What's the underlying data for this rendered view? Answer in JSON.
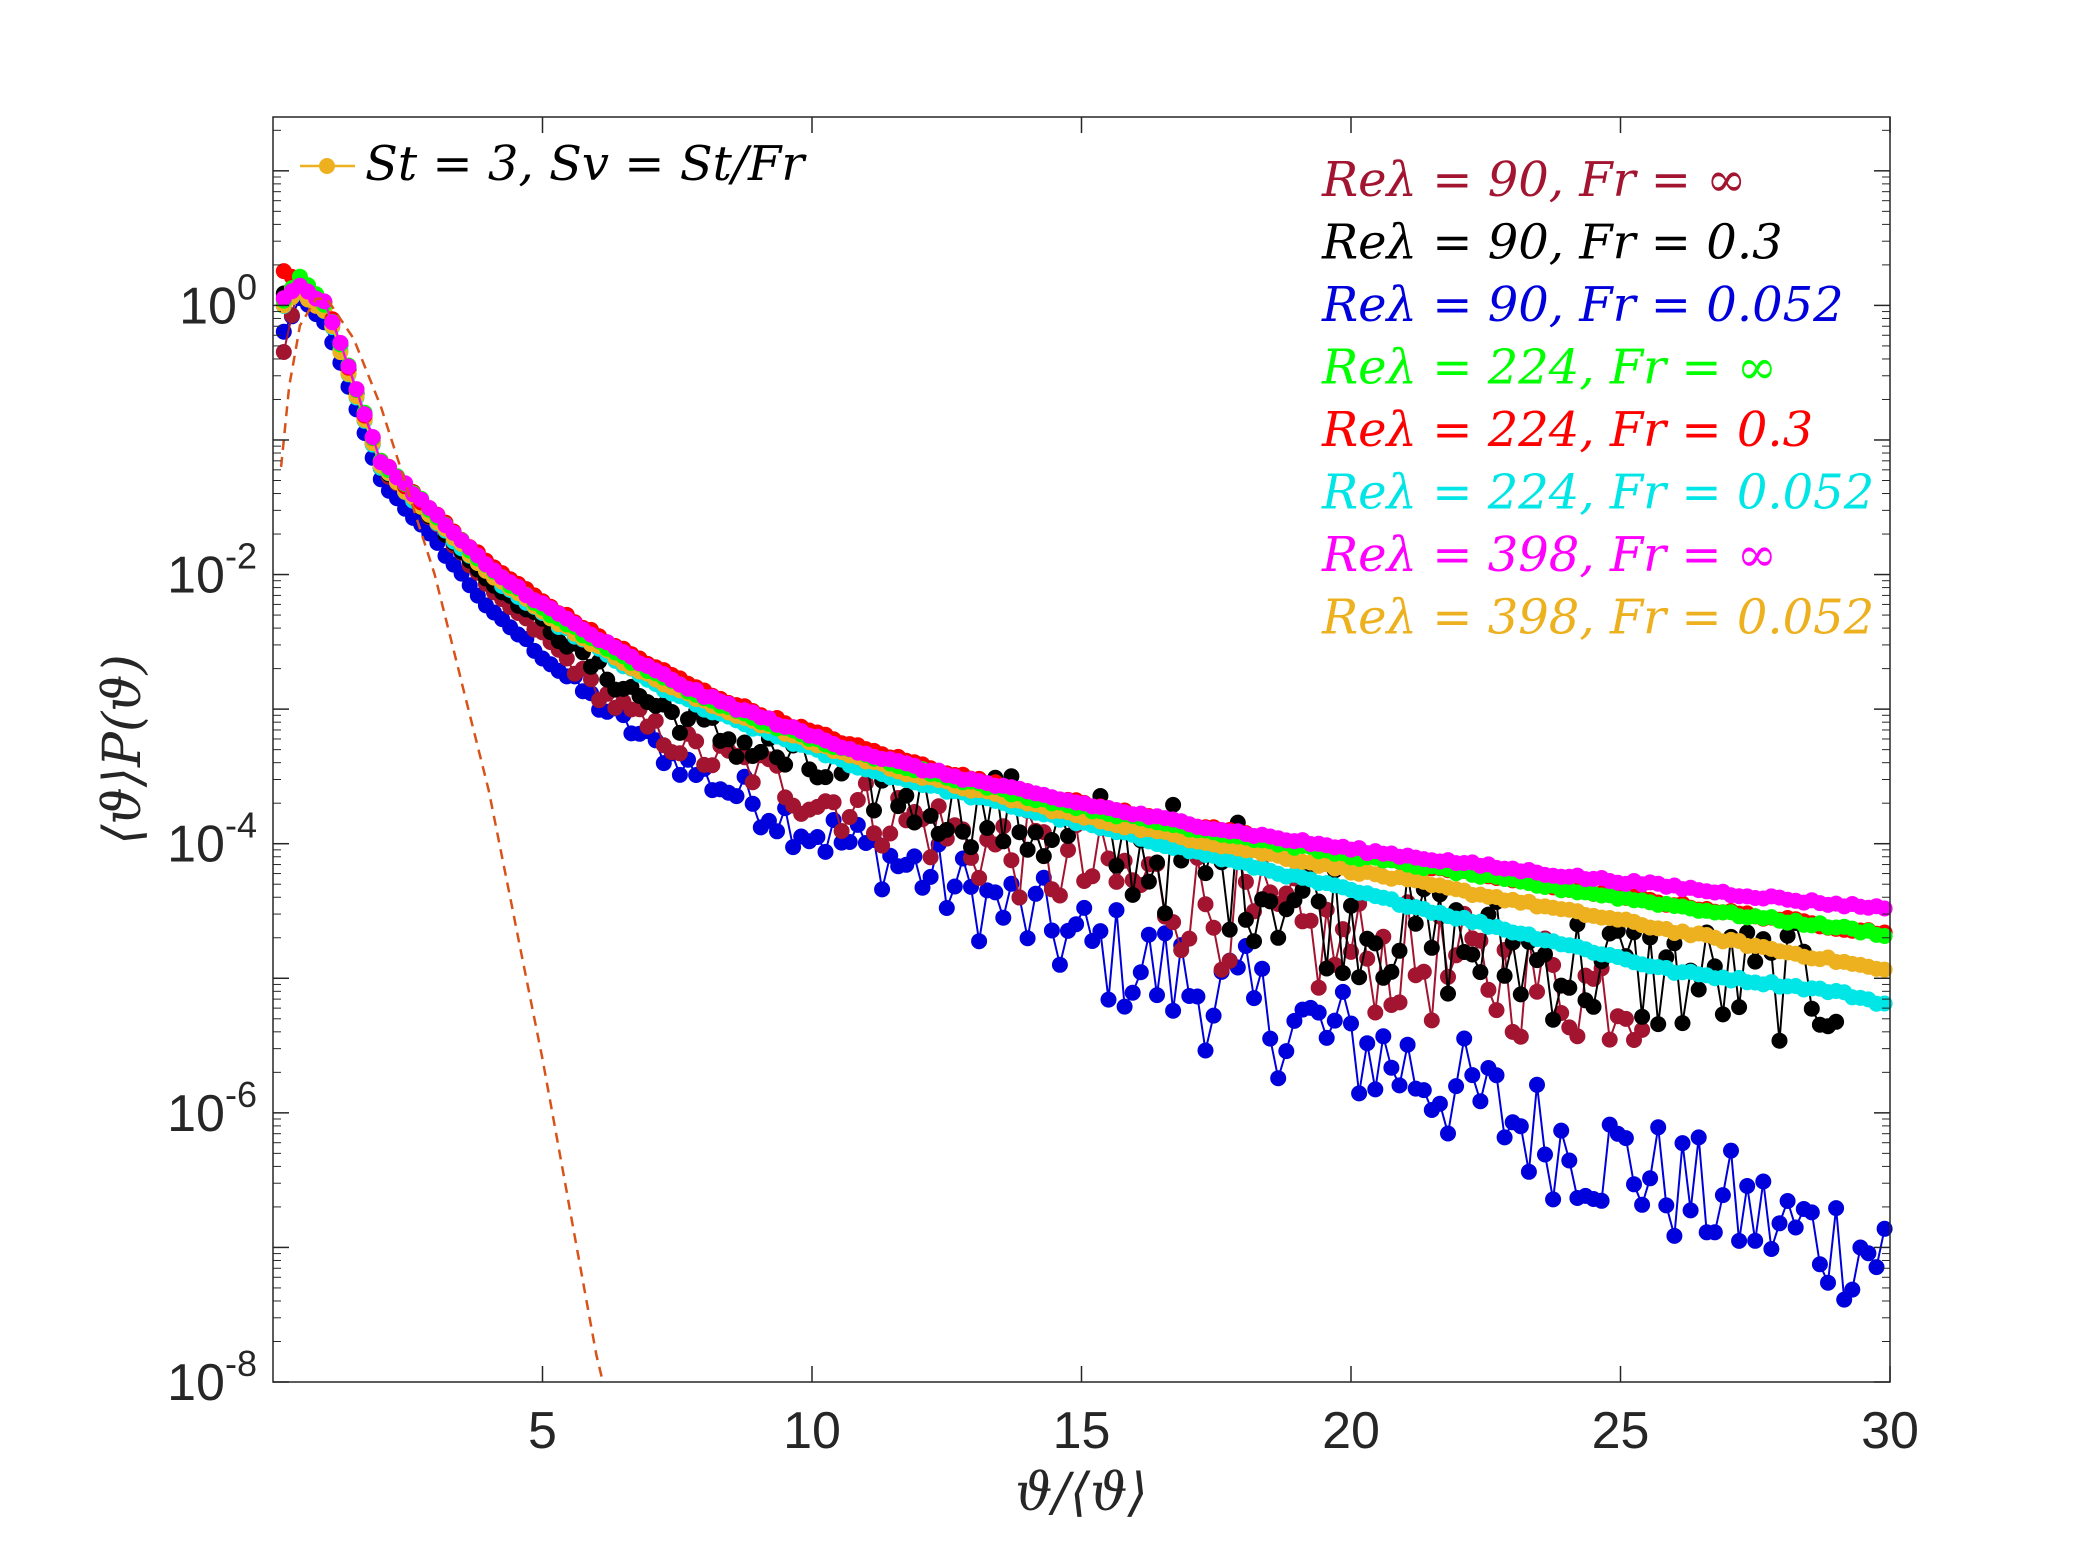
{
  "chart_data": {
    "type": "scatter",
    "title": "",
    "xlabel": "ϑ/⟨ϑ⟩",
    "ylabel": "⟨ϑ⟩P(ϑ)",
    "x_range": [
      0,
      30
    ],
    "y_range_log10": [
      -8,
      1.4
    ],
    "y_scale": "log",
    "xticks": [
      5,
      10,
      15,
      20,
      25,
      30
    ],
    "xtick_labels": [
      "5",
      "10",
      "15",
      "20",
      "25",
      "30"
    ],
    "yticks_log10": [
      0,
      -2,
      -4,
      -6,
      -8
    ],
    "ytick_base": "10",
    "ytick_exponents": [
      "0",
      "-2",
      "-4",
      "-6",
      "-8"
    ],
    "legend_title": "St = 3, Sv = St/Fr",
    "legend_title_color": "#EDB120",
    "legend_placement": "top-right",
    "grid": false,
    "series": [
      {
        "name": "Reλ = 90, Fr = ∞",
        "color": "#A2142F",
        "noisy_tail": true,
        "points": [
          [
            0.2,
            -0.35
          ],
          [
            0.5,
            0.2
          ],
          [
            1,
            0.0
          ],
          [
            2,
            -1.2
          ],
          [
            3,
            -1.6
          ],
          [
            4,
            -2.1
          ],
          [
            5,
            -2.45
          ],
          [
            6,
            -2.85
          ],
          [
            7,
            -3.15
          ],
          [
            8,
            -3.35
          ],
          [
            9,
            -3.45
          ],
          [
            10,
            -3.65
          ],
          [
            11,
            -3.75
          ],
          [
            12,
            -3.85
          ],
          [
            13,
            -4.0
          ],
          [
            14,
            -4.1
          ],
          [
            15,
            -4.2
          ],
          [
            16,
            -4.3
          ],
          [
            17,
            -4.4
          ],
          [
            18,
            -4.55
          ],
          [
            19,
            -4.7
          ],
          [
            20,
            -4.8
          ],
          [
            22,
            -4.95
          ],
          [
            24,
            -5.05
          ],
          [
            25.5,
            -5.1
          ]
        ]
      },
      {
        "name": "Reλ = 90, Fr = 0.3",
        "color": "#000000",
        "noisy_tail": true,
        "points": [
          [
            0.2,
            0.1
          ],
          [
            0.5,
            0.15
          ],
          [
            1,
            0.0
          ],
          [
            2,
            -1.2
          ],
          [
            3,
            -1.6
          ],
          [
            4,
            -2.05
          ],
          [
            5,
            -2.35
          ],
          [
            6,
            -2.7
          ],
          [
            7,
            -2.95
          ],
          [
            8,
            -3.15
          ],
          [
            9,
            -3.3
          ],
          [
            10,
            -3.45
          ],
          [
            11,
            -3.55
          ],
          [
            12,
            -3.65
          ],
          [
            13,
            -3.72
          ],
          [
            14,
            -3.85
          ],
          [
            15,
            -3.95
          ],
          [
            16,
            -4.05
          ],
          [
            17,
            -4.15
          ],
          [
            18,
            -4.25
          ],
          [
            19,
            -4.4
          ],
          [
            20,
            -4.55
          ],
          [
            22,
            -4.75
          ],
          [
            24,
            -4.9
          ],
          [
            26,
            -5.0
          ],
          [
            29,
            -5.05
          ]
        ]
      },
      {
        "name": "Reλ = 90, Fr = 0.052",
        "color": "#0000DD",
        "noisy_tail": true,
        "points": [
          [
            0.2,
            -0.2
          ],
          [
            0.5,
            0.05
          ],
          [
            1,
            -0.15
          ],
          [
            2,
            -1.3
          ],
          [
            3,
            -1.75
          ],
          [
            4,
            -2.25
          ],
          [
            5,
            -2.6
          ],
          [
            6,
            -2.95
          ],
          [
            7,
            -3.25
          ],
          [
            8,
            -3.5
          ],
          [
            9,
            -3.7
          ],
          [
            10,
            -3.9
          ],
          [
            11,
            -4.05
          ],
          [
            12,
            -4.2
          ],
          [
            13,
            -4.4
          ],
          [
            14,
            -4.55
          ],
          [
            15,
            -4.75
          ],
          [
            16,
            -4.9
          ],
          [
            17,
            -5.05
          ],
          [
            18,
            -5.2
          ],
          [
            19,
            -5.35
          ],
          [
            20,
            -5.5
          ],
          [
            21,
            -5.65
          ],
          [
            22,
            -5.85
          ],
          [
            23,
            -6.05
          ],
          [
            24,
            -6.25
          ],
          [
            25,
            -6.35
          ],
          [
            26,
            -6.55
          ],
          [
            27,
            -6.7
          ],
          [
            28,
            -6.85
          ],
          [
            29,
            -6.95
          ],
          [
            30,
            -7.05
          ]
        ]
      },
      {
        "name": "Reλ = 224, Fr = ∞",
        "color": "#00FF00",
        "noisy_tail": false,
        "points": [
          [
            0.2,
            0.05
          ],
          [
            0.5,
            0.2
          ],
          [
            1,
            0.0
          ],
          [
            2,
            -1.15
          ],
          [
            3,
            -1.55
          ],
          [
            4,
            -1.95
          ],
          [
            5,
            -2.25
          ],
          [
            6,
            -2.5
          ],
          [
            7,
            -2.72
          ],
          [
            8,
            -2.92
          ],
          [
            9,
            -3.08
          ],
          [
            10,
            -3.22
          ],
          [
            11,
            -3.35
          ],
          [
            12,
            -3.45
          ],
          [
            13,
            -3.55
          ],
          [
            14,
            -3.65
          ],
          [
            15,
            -3.73
          ],
          [
            16,
            -3.81
          ],
          [
            17,
            -3.88
          ],
          [
            18,
            -3.95
          ],
          [
            19,
            -4.02
          ],
          [
            20,
            -4.09
          ],
          [
            21,
            -4.15
          ],
          [
            22,
            -4.21
          ],
          [
            23,
            -4.28
          ],
          [
            24,
            -4.34
          ],
          [
            25,
            -4.4
          ],
          [
            26,
            -4.46
          ],
          [
            27,
            -4.52
          ],
          [
            28,
            -4.57
          ],
          [
            29,
            -4.62
          ],
          [
            30,
            -4.68
          ]
        ]
      },
      {
        "name": "Reλ = 224, Fr = 0.3",
        "color": "#FF0000",
        "noisy_tail": false,
        "points": [
          [
            0.2,
            0.25
          ],
          [
            0.5,
            0.2
          ],
          [
            1,
            0.0
          ],
          [
            2,
            -1.15
          ],
          [
            3,
            -1.55
          ],
          [
            4,
            -1.92
          ],
          [
            5,
            -2.2
          ],
          [
            6,
            -2.45
          ],
          [
            7,
            -2.67
          ],
          [
            8,
            -2.87
          ],
          [
            9,
            -3.03
          ],
          [
            10,
            -3.17
          ],
          [
            11,
            -3.3
          ],
          [
            12,
            -3.41
          ],
          [
            13,
            -3.52
          ],
          [
            14,
            -3.61
          ],
          [
            15,
            -3.7
          ],
          [
            16,
            -3.78
          ],
          [
            17,
            -3.86
          ],
          [
            18,
            -3.93
          ],
          [
            19,
            -4.0
          ],
          [
            20,
            -4.07
          ],
          [
            21,
            -4.14
          ],
          [
            22,
            -4.2
          ],
          [
            23,
            -4.27
          ],
          [
            24,
            -4.33
          ],
          [
            25,
            -4.39
          ],
          [
            26,
            -4.45
          ],
          [
            27,
            -4.51
          ],
          [
            28,
            -4.56
          ],
          [
            29,
            -4.62
          ],
          [
            30,
            -4.67
          ]
        ]
      },
      {
        "name": "Reλ = 224, Fr = 0.052",
        "color": "#00E5E5",
        "noisy_tail": false,
        "points": [
          [
            0.2,
            0.0
          ],
          [
            0.5,
            0.1
          ],
          [
            1,
            -0.05
          ],
          [
            2,
            -1.2
          ],
          [
            3,
            -1.6
          ],
          [
            4,
            -2.0
          ],
          [
            5,
            -2.3
          ],
          [
            6,
            -2.55
          ],
          [
            7,
            -2.8
          ],
          [
            8,
            -3.0
          ],
          [
            9,
            -3.15
          ],
          [
            10,
            -3.3
          ],
          [
            11,
            -3.45
          ],
          [
            12,
            -3.55
          ],
          [
            13,
            -3.65
          ],
          [
            14,
            -3.75
          ],
          [
            15,
            -3.85
          ],
          [
            16,
            -3.95
          ],
          [
            17,
            -4.05
          ],
          [
            18,
            -4.15
          ],
          [
            19,
            -4.25
          ],
          [
            20,
            -4.35
          ],
          [
            21,
            -4.45
          ],
          [
            22,
            -4.55
          ],
          [
            23,
            -4.65
          ],
          [
            24,
            -4.75
          ],
          [
            25,
            -4.85
          ],
          [
            26,
            -4.95
          ],
          [
            27,
            -5.0
          ],
          [
            28,
            -5.05
          ],
          [
            29,
            -5.1
          ],
          [
            30,
            -5.2
          ]
        ]
      },
      {
        "name": "Reλ = 398, Fr = ∞",
        "color": "#FF00FF",
        "noisy_tail": false,
        "points": [
          [
            0.2,
            0.05
          ],
          [
            0.5,
            0.15
          ],
          [
            1,
            0.0
          ],
          [
            2,
            -1.15
          ],
          [
            3,
            -1.55
          ],
          [
            4,
            -1.95
          ],
          [
            5,
            -2.22
          ],
          [
            6,
            -2.47
          ],
          [
            7,
            -2.7
          ],
          [
            8,
            -2.9
          ],
          [
            9,
            -3.05
          ],
          [
            10,
            -3.2
          ],
          [
            11,
            -3.33
          ],
          [
            12,
            -3.44
          ],
          [
            13,
            -3.53
          ],
          [
            14,
            -3.62
          ],
          [
            15,
            -3.7
          ],
          [
            16,
            -3.78
          ],
          [
            17,
            -3.85
          ],
          [
            18,
            -3.92
          ],
          [
            19,
            -3.98
          ],
          [
            20,
            -4.04
          ],
          [
            21,
            -4.09
          ],
          [
            22,
            -4.14
          ],
          [
            23,
            -4.19
          ],
          [
            24,
            -4.24
          ],
          [
            25,
            -4.28
          ],
          [
            26,
            -4.32
          ],
          [
            27,
            -4.37
          ],
          [
            28,
            -4.41
          ],
          [
            29,
            -4.45
          ],
          [
            30,
            -4.48
          ]
        ]
      },
      {
        "name": "Reλ = 398, Fr = 0.052",
        "color": "#EDB120",
        "noisy_tail": false,
        "points": [
          [
            0.2,
            0.0
          ],
          [
            0.5,
            0.1
          ],
          [
            1,
            -0.05
          ],
          [
            2,
            -1.2
          ],
          [
            3,
            -1.58
          ],
          [
            4,
            -1.98
          ],
          [
            5,
            -2.28
          ],
          [
            6,
            -2.53
          ],
          [
            7,
            -2.76
          ],
          [
            8,
            -2.95
          ],
          [
            9,
            -3.1
          ],
          [
            10,
            -3.25
          ],
          [
            11,
            -3.38
          ],
          [
            12,
            -3.5
          ],
          [
            13,
            -3.6
          ],
          [
            14,
            -3.7
          ],
          [
            15,
            -3.8
          ],
          [
            16,
            -3.88
          ],
          [
            17,
            -3.96
          ],
          [
            18,
            -4.04
          ],
          [
            19,
            -4.12
          ],
          [
            20,
            -4.2
          ],
          [
            21,
            -4.27
          ],
          [
            22,
            -4.35
          ],
          [
            23,
            -4.42
          ],
          [
            24,
            -4.5
          ],
          [
            25,
            -4.57
          ],
          [
            26,
            -4.65
          ],
          [
            27,
            -4.72
          ],
          [
            28,
            -4.8
          ],
          [
            29,
            -4.87
          ],
          [
            30,
            -4.95
          ]
        ]
      }
    ],
    "reference_curve": {
      "style": "dashed",
      "color": "#D95319",
      "points": [
        [
          0.15,
          -1.2
        ],
        [
          0.3,
          -0.6
        ],
        [
          0.5,
          -0.15
        ],
        [
          0.8,
          0.05
        ],
        [
          1,
          0.05
        ],
        [
          1.5,
          -0.25
        ],
        [
          2,
          -0.75
        ],
        [
          3,
          -2.0
        ],
        [
          4,
          -3.6
        ],
        [
          5,
          -5.6
        ],
        [
          6,
          -7.8
        ],
        [
          6.12,
          -8.0
        ]
      ]
    }
  }
}
